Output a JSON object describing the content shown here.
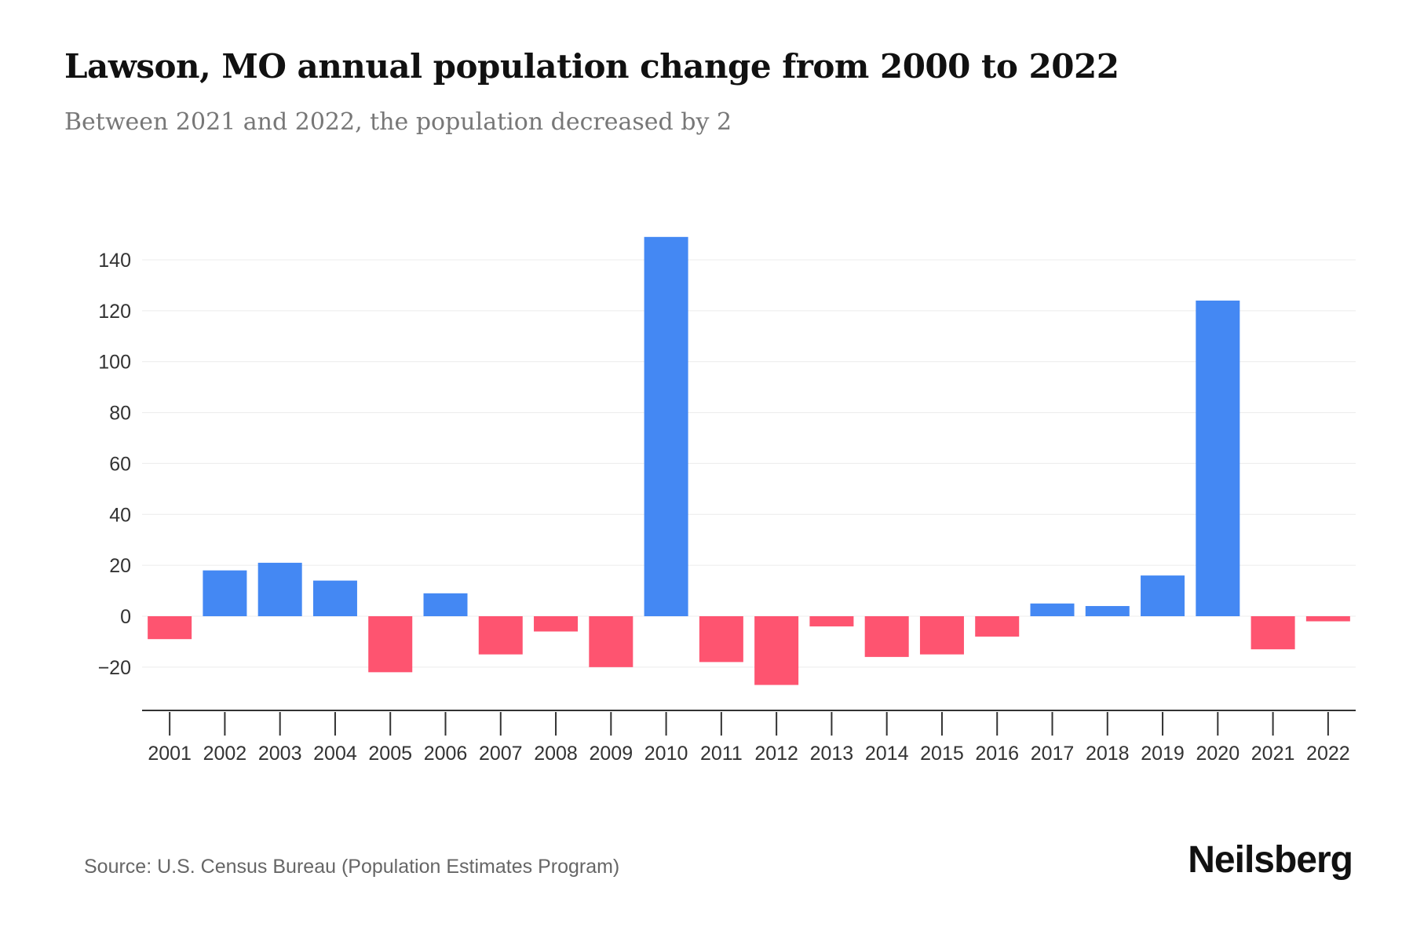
{
  "chart_data": {
    "type": "bar",
    "title": "Lawson, MO annual population change from 2000 to 2022",
    "subtitle": "Between 2021 and 2022, the population decreased by 2",
    "xlabel": "",
    "ylabel": "",
    "categories": [
      "2001",
      "2002",
      "2003",
      "2004",
      "2005",
      "2006",
      "2007",
      "2008",
      "2009",
      "2010",
      "2011",
      "2012",
      "2013",
      "2014",
      "2015",
      "2016",
      "2017",
      "2018",
      "2019",
      "2020",
      "2021",
      "2022"
    ],
    "values": [
      -9,
      18,
      21,
      14,
      -22,
      9,
      -15,
      -6,
      -20,
      149,
      -18,
      -27,
      -4,
      -16,
      -15,
      -8,
      5,
      4,
      16,
      124,
      -13,
      -2
    ],
    "ylim": [
      -37,
      150
    ],
    "yticks": [
      140,
      120,
      100,
      80,
      60,
      40,
      20,
      0,
      -20
    ],
    "ytick_labels": [
      "140",
      "120",
      "100",
      "80",
      "60",
      "40",
      "20",
      "0",
      "−20"
    ],
    "grid": true,
    "colors": {
      "positive": "#4488f3",
      "negative": "#fe5470"
    }
  },
  "footer": {
    "source": "Source: U.S. Census Bureau (Population Estimates Program)",
    "logo": "Neilsberg"
  }
}
